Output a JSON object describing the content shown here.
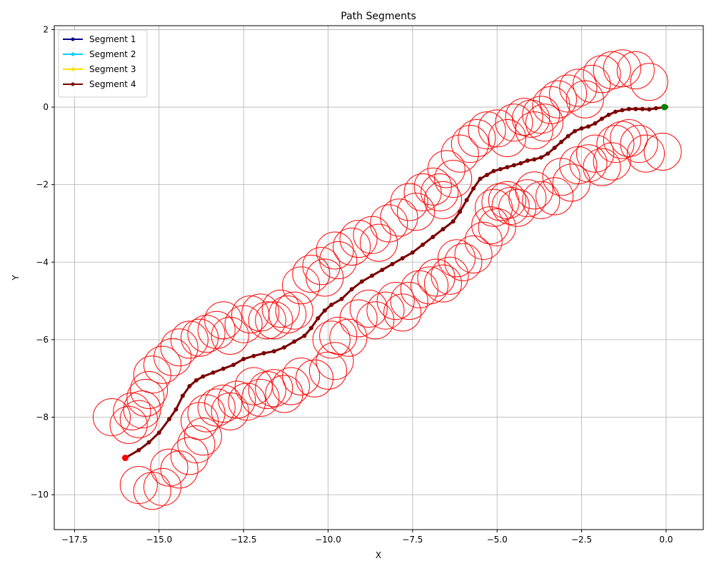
{
  "chart_data": {
    "type": "line",
    "title": "Path Segments",
    "xlabel": "X",
    "ylabel": "Y",
    "xlim": [
      -18.1,
      1.1
    ],
    "ylim": [
      -10.9,
      2.1
    ],
    "xticks": [
      -17.5,
      -15.0,
      -12.5,
      -10.0,
      -7.5,
      -5.0,
      -2.5,
      0.0
    ],
    "xtick_labels": [
      "−17.5",
      "−15.0",
      "−12.5",
      "−10.0",
      "−7.5",
      "−5.0",
      "−2.5",
      "0.0"
    ],
    "yticks": [
      -10,
      -8,
      -6,
      -4,
      -2,
      0,
      2
    ],
    "ytick_labels": [
      "−10",
      "−8",
      "−6",
      "−4",
      "−2",
      "0",
      "2"
    ],
    "grid": true,
    "legend": {
      "position": "top-left"
    },
    "series": [
      {
        "name": "Segment 1",
        "color": "#00008b",
        "x": [],
        "y": []
      },
      {
        "name": "Segment 2",
        "color": "#00d0ff",
        "x": [],
        "y": []
      },
      {
        "name": "Segment 3",
        "color": "#ffe000",
        "x": [],
        "y": []
      },
      {
        "name": "Segment 4",
        "color": "#7b0000",
        "x": [
          -16.0,
          -15.6,
          -15.3,
          -15.0,
          -14.7,
          -14.5,
          -14.3,
          -14.1,
          -13.9,
          -13.7,
          -13.4,
          -13.1,
          -12.8,
          -12.5,
          -12.2,
          -11.9,
          -11.6,
          -11.3,
          -11.0,
          -10.7,
          -10.5,
          -10.3,
          -10.1,
          -9.9,
          -9.6,
          -9.3,
          -9.0,
          -8.7,
          -8.4,
          -8.1,
          -7.8,
          -7.5,
          -7.2,
          -6.9,
          -6.6,
          -6.3,
          -6.1,
          -5.9,
          -5.7,
          -5.5,
          -5.3,
          -5.1,
          -4.9,
          -4.7,
          -4.5,
          -4.3,
          -4.1,
          -3.9,
          -3.7,
          -3.5,
          -3.3,
          -3.1,
          -2.9,
          -2.7,
          -2.5,
          -2.3,
          -2.1,
          -1.9,
          -1.7,
          -1.5,
          -1.3,
          -1.1,
          -0.9,
          -0.7,
          -0.5,
          -0.3,
          0.0
        ],
        "y": [
          -9.05,
          -8.85,
          -8.65,
          -8.4,
          -8.05,
          -7.8,
          -7.45,
          -7.2,
          -7.05,
          -6.95,
          -6.85,
          -6.75,
          -6.65,
          -6.5,
          -6.42,
          -6.35,
          -6.3,
          -6.2,
          -6.05,
          -5.9,
          -5.7,
          -5.45,
          -5.25,
          -5.1,
          -4.95,
          -4.7,
          -4.5,
          -4.35,
          -4.2,
          -4.05,
          -3.9,
          -3.75,
          -3.55,
          -3.35,
          -3.15,
          -2.95,
          -2.7,
          -2.4,
          -2.1,
          -1.85,
          -1.75,
          -1.65,
          -1.6,
          -1.55,
          -1.5,
          -1.45,
          -1.38,
          -1.35,
          -1.3,
          -1.2,
          -1.05,
          -0.9,
          -0.75,
          -0.62,
          -0.55,
          -0.5,
          -0.42,
          -0.3,
          -0.2,
          -0.12,
          -0.08,
          -0.05,
          -0.05,
          -0.05,
          -0.06,
          -0.03,
          0.0
        ]
      }
    ],
    "start_point": {
      "x": -16.0,
      "y": -9.05,
      "color": "#ff0000"
    },
    "end_point": {
      "x": -0.05,
      "y": 0.0,
      "color": "#008000"
    },
    "obstacles": {
      "color": "#ff0000",
      "radius": 0.55,
      "centers": [
        [
          -16.4,
          -8.0
        ],
        [
          -15.9,
          -8.2
        ],
        [
          -15.8,
          -7.85
        ],
        [
          -15.6,
          -8.05
        ],
        [
          -15.5,
          -7.8
        ],
        [
          -15.4,
          -7.5
        ],
        [
          -15.3,
          -7.3
        ],
        [
          -15.2,
          -6.9
        ],
        [
          -14.9,
          -6.65
        ],
        [
          -14.6,
          -6.45
        ],
        [
          -14.4,
          -6.2
        ],
        [
          -14.1,
          -6.0
        ],
        [
          -13.8,
          -5.95
        ],
        [
          -13.6,
          -5.85
        ],
        [
          -13.3,
          -5.75
        ],
        [
          -13.1,
          -5.5
        ],
        [
          -12.9,
          -5.9
        ],
        [
          -12.5,
          -5.6
        ],
        [
          -12.3,
          -5.35
        ],
        [
          -12.0,
          -5.3
        ],
        [
          -11.8,
          -5.5
        ],
        [
          -11.6,
          -5.5
        ],
        [
          -11.4,
          -5.2
        ],
        [
          -11.2,
          -5.35
        ],
        [
          -11.0,
          -5.25
        ],
        [
          -10.8,
          -4.6
        ],
        [
          -10.5,
          -4.3
        ],
        [
          -10.2,
          -4.1
        ],
        [
          -10.1,
          -4.4
        ],
        [
          -9.8,
          -3.7
        ],
        [
          -9.7,
          -3.95
        ],
        [
          -9.3,
          -3.6
        ],
        [
          -9.1,
          -3.4
        ],
        [
          -8.7,
          -3.3
        ],
        [
          -8.5,
          -3.5
        ],
        [
          -8.2,
          -3.0
        ],
        [
          -7.9,
          -2.85
        ],
        [
          -7.6,
          -2.45
        ],
        [
          -7.4,
          -2.7
        ],
        [
          -7.2,
          -2.2
        ],
        [
          -6.9,
          -2.05
        ],
        [
          -6.7,
          -2.2
        ],
        [
          -6.6,
          -2.4
        ],
        [
          -6.5,
          -1.6
        ],
        [
          -6.3,
          -1.85
        ],
        [
          -6.1,
          -1.2
        ],
        [
          -5.8,
          -0.95
        ],
        [
          -5.6,
          -0.8
        ],
        [
          -5.3,
          -0.6
        ],
        [
          -5.0,
          -0.55
        ],
        [
          -4.7,
          -0.8
        ],
        [
          -4.5,
          -0.4
        ],
        [
          -4.2,
          -0.25
        ],
        [
          -4.0,
          -0.3
        ],
        [
          -3.9,
          -0.6
        ],
        [
          -3.7,
          -0.2
        ],
        [
          -3.6,
          -0.4
        ],
        [
          -3.4,
          0.05
        ],
        [
          -3.2,
          0.2
        ],
        [
          -2.9,
          0.35
        ],
        [
          -2.6,
          0.5
        ],
        [
          -2.4,
          0.2
        ],
        [
          -2.2,
          0.6
        ],
        [
          -1.9,
          0.85
        ],
        [
          -1.6,
          0.95
        ],
        [
          -1.3,
          1.0
        ],
        [
          -0.9,
          0.95
        ],
        [
          -0.5,
          0.65
        ],
        [
          -15.6,
          -9.75
        ],
        [
          -15.2,
          -9.9
        ],
        [
          -14.9,
          -9.8
        ],
        [
          -14.7,
          -9.3
        ],
        [
          -14.4,
          -9.35
        ],
        [
          -14.1,
          -9.0
        ],
        [
          -13.9,
          -8.7
        ],
        [
          -13.7,
          -8.5
        ],
        [
          -13.8,
          -8.1
        ],
        [
          -13.6,
          -7.9
        ],
        [
          -13.3,
          -7.75
        ],
        [
          -13.1,
          -7.65
        ],
        [
          -12.9,
          -7.85
        ],
        [
          -12.7,
          -7.55
        ],
        [
          -12.4,
          -7.6
        ],
        [
          -12.2,
          -7.2
        ],
        [
          -12.0,
          -7.5
        ],
        [
          -11.8,
          -7.3
        ],
        [
          -11.6,
          -7.25
        ],
        [
          -11.3,
          -7.4
        ],
        [
          -11.1,
          -7.2
        ],
        [
          -10.8,
          -6.95
        ],
        [
          -10.4,
          -7.0
        ],
        [
          -10.0,
          -6.8
        ],
        [
          -9.8,
          -6.55
        ],
        [
          -9.9,
          -6.0
        ],
        [
          -9.7,
          -5.9
        ],
        [
          -9.4,
          -5.95
        ],
        [
          -9.1,
          -5.45
        ],
        [
          -8.8,
          -5.2
        ],
        [
          -8.6,
          -5.5
        ],
        [
          -8.3,
          -5.25
        ],
        [
          -8.0,
          -5.0
        ],
        [
          -7.8,
          -5.3
        ],
        [
          -7.6,
          -5.0
        ],
        [
          -7.3,
          -4.7
        ],
        [
          -7.0,
          -4.6
        ],
        [
          -6.8,
          -4.4
        ],
        [
          -6.6,
          -4.55
        ],
        [
          -6.4,
          -4.35
        ],
        [
          -6.2,
          -3.9
        ],
        [
          -6.0,
          -4.0
        ],
        [
          -5.7,
          -3.8
        ],
        [
          -5.4,
          -3.45
        ],
        [
          -5.2,
          -3.05
        ],
        [
          -5.0,
          -3.1
        ],
        [
          -5.1,
          -2.6
        ],
        [
          -4.9,
          -2.45
        ],
        [
          -4.7,
          -2.4
        ],
        [
          -4.6,
          -2.55
        ],
        [
          -4.4,
          -2.6
        ],
        [
          -4.1,
          -2.35
        ],
        [
          -3.9,
          -2.15
        ],
        [
          -3.7,
          -2.4
        ],
        [
          -3.3,
          -2.3
        ],
        [
          -3.1,
          -1.8
        ],
        [
          -2.8,
          -1.95
        ],
        [
          -2.6,
          -1.5
        ],
        [
          -2.3,
          -1.45
        ],
        [
          -2.1,
          -1.2
        ],
        [
          -1.9,
          -1.55
        ],
        [
          -1.6,
          -1.4
        ],
        [
          -1.5,
          -0.95
        ],
        [
          -1.3,
          -0.85
        ],
        [
          -1.1,
          -0.8
        ],
        [
          -0.8,
          -0.95
        ],
        [
          -0.6,
          -1.2
        ],
        [
          -0.1,
          -1.15
        ]
      ]
    }
  }
}
